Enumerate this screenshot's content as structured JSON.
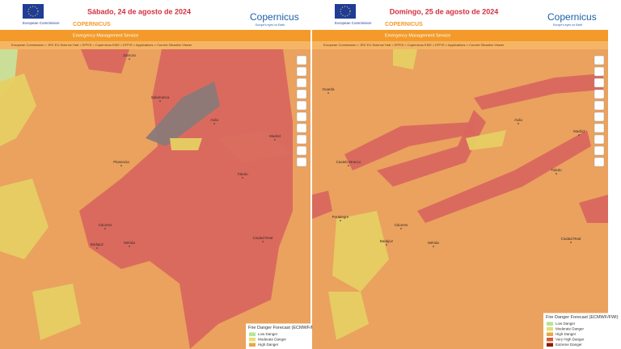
{
  "panels": [
    {
      "date": "Sábado, 24 de agosto de 2024",
      "header": {
        "agency": "European Commission",
        "service_title": "COPERNICUS",
        "service_subtitle": "Emergency Management Service",
        "brand": "Copernicus",
        "brand_tagline": "Europe's eyes on Earth"
      },
      "breadcrumb": "European Commission > JRC EU Science Hub > EFFIS > Copernicus EMS > EFFIS > Applications > Current Situation Viewer",
      "cities": [
        "Zamora",
        "Salamanca",
        "Ávila",
        "Plasencia",
        "Madrid",
        "Toledo",
        "Cáceres",
        "Mérida",
        "Badajoz",
        "Ciudad Real"
      ],
      "legend": {
        "title": "Fire Danger Forecast (ECMWF/FWI)",
        "items": [
          "Low Danger",
          "Moderate Danger",
          "High Danger"
        ]
      }
    },
    {
      "date": "Domingo, 25 de agosto de 2024",
      "header": {
        "agency": "European Commission",
        "service_title": "COPERNICUS",
        "service_subtitle": "Emergency Management Service",
        "brand": "Copernicus",
        "brand_tagline": "Europe's eyes on Earth"
      },
      "breadcrumb": "European Commission > JRC EU Science Hub > EFFIS > Copernicus EMS > EFFIS > Applications > Current Situation Viewer",
      "cities": [
        "Guarda",
        "Ávila",
        "Madrid",
        "Toledo",
        "Castelo Branco",
        "Portalegre",
        "Cáceres",
        "Mérida",
        "Badajoz",
        "Ciudad Real"
      ],
      "legend": {
        "title": "Fire Danger Forecast (ECMWF/FWI)",
        "items": [
          "Low Danger",
          "Moderate Danger",
          "High Danger",
          "Very High Danger",
          "Extreme Danger"
        ]
      }
    }
  ]
}
